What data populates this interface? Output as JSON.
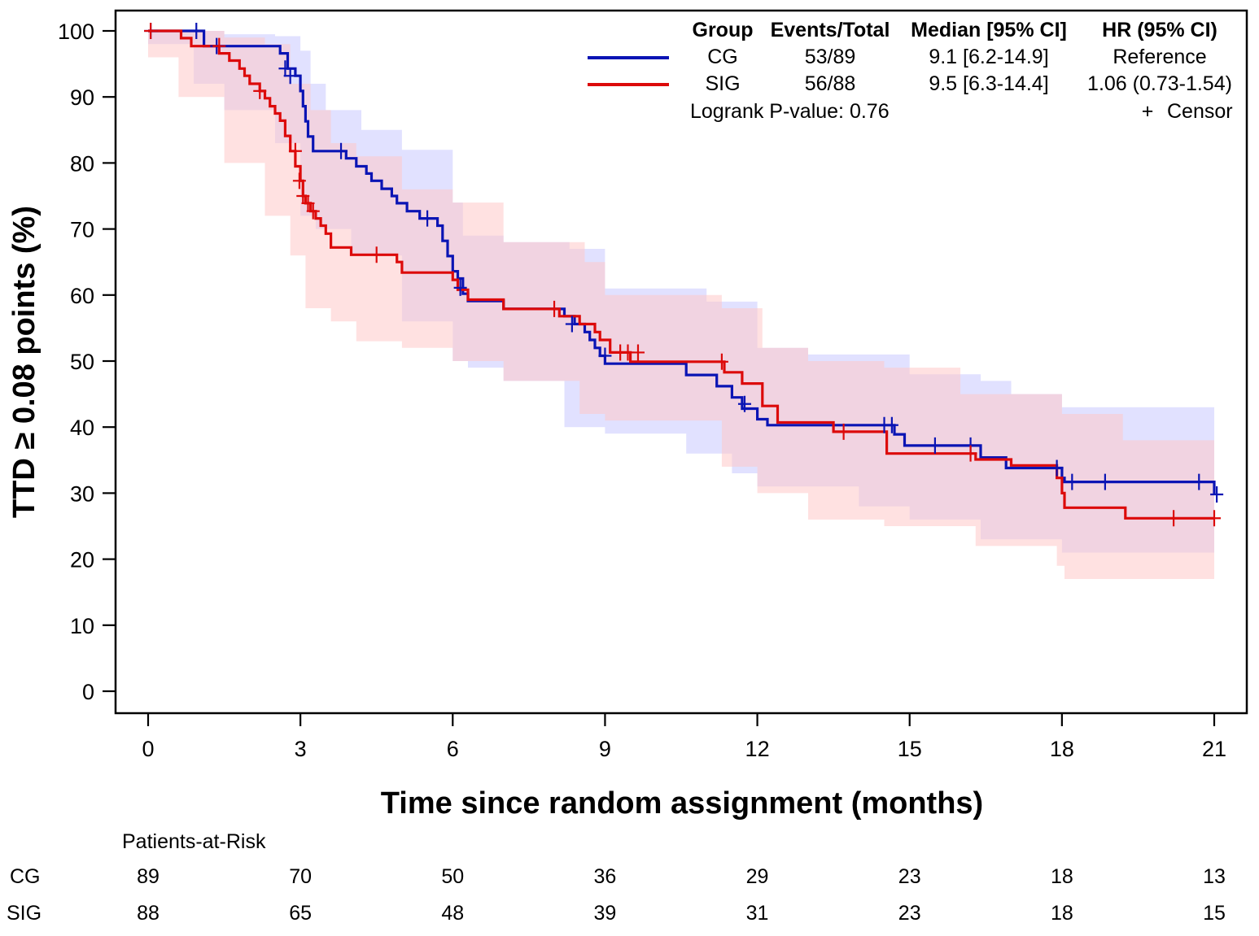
{
  "chart_data": {
    "type": "line",
    "subtype": "kaplan-meier",
    "xlabel": "Time since random assignment (months)",
    "ylabel": "TTD ≥ 0.08 points (%)",
    "xlim": [
      0,
      21
    ],
    "ylim": [
      0,
      100
    ],
    "xticks": [
      "0",
      "3",
      "6",
      "9",
      "12",
      "15",
      "18",
      "21"
    ],
    "yticks": [
      "0",
      "10",
      "20",
      "30",
      "40",
      "50",
      "60",
      "70",
      "80",
      "90",
      "100"
    ],
    "series": [
      {
        "name": "CG",
        "color": "#0a14b4",
        "ci_color": "#c8c8ff",
        "steps": [
          [
            0,
            100
          ],
          [
            0.9,
            100
          ],
          [
            1.1,
            97.7
          ],
          [
            2.5,
            97.7
          ],
          [
            2.6,
            96.6
          ],
          [
            2.75,
            94.3
          ],
          [
            2.9,
            93.2
          ],
          [
            3.0,
            90.9
          ],
          [
            3.05,
            88.6
          ],
          [
            3.1,
            86.3
          ],
          [
            3.15,
            84
          ],
          [
            3.25,
            81.8
          ],
          [
            3.8,
            81.8
          ],
          [
            3.9,
            80.7
          ],
          [
            4.1,
            79.5
          ],
          [
            4.3,
            78.4
          ],
          [
            4.4,
            77.3
          ],
          [
            4.6,
            76.1
          ],
          [
            4.8,
            75
          ],
          [
            4.9,
            73.9
          ],
          [
            5.1,
            72.7
          ],
          [
            5.35,
            71.6
          ],
          [
            5.7,
            70.5
          ],
          [
            5.8,
            68.2
          ],
          [
            5.9,
            65.9
          ],
          [
            6.0,
            63.6
          ],
          [
            6.1,
            62.5
          ],
          [
            6.2,
            60.2
          ],
          [
            6.3,
            59.1
          ],
          [
            7.0,
            57.9
          ],
          [
            8.2,
            56.8
          ],
          [
            8.4,
            55.6
          ],
          [
            8.6,
            54.4
          ],
          [
            8.7,
            53.2
          ],
          [
            8.8,
            52
          ],
          [
            8.9,
            50.8
          ],
          [
            9.0,
            49.6
          ],
          [
            10.6,
            47.9
          ],
          [
            11.2,
            46.2
          ],
          [
            11.5,
            44.5
          ],
          [
            11.7,
            42.8
          ],
          [
            12.0,
            41.2
          ],
          [
            12.2,
            40.3
          ],
          [
            14.7,
            38.9
          ],
          [
            14.9,
            37.2
          ],
          [
            16.4,
            35.4
          ],
          [
            16.9,
            33.8
          ],
          [
            18.0,
            32.3
          ],
          [
            18.05,
            31.7
          ],
          [
            21.0,
            31.7
          ],
          [
            21.0,
            29.8
          ]
        ],
        "censors": [
          [
            0.05,
            100
          ],
          [
            0.95,
            100
          ],
          [
            1.35,
            97.7
          ],
          [
            2.7,
            94.3
          ],
          [
            2.8,
            93.2
          ],
          [
            3.8,
            81.8
          ],
          [
            5.5,
            71.6
          ],
          [
            6.15,
            61.1
          ],
          [
            8.35,
            55.6
          ],
          [
            9.0,
            50.8
          ],
          [
            11.75,
            43.5
          ],
          [
            14.5,
            40.3
          ],
          [
            14.65,
            40.3
          ],
          [
            15.5,
            37.2
          ],
          [
            16.2,
            37.2
          ],
          [
            17.9,
            33.8
          ],
          [
            18.2,
            31.7
          ],
          [
            18.85,
            31.7
          ],
          [
            20.7,
            31.7
          ],
          [
            21.05,
            29.8
          ]
        ],
        "ci_upper": [
          [
            0,
            100
          ],
          [
            1.0,
            100
          ],
          [
            1.5,
            99.5
          ],
          [
            2.5,
            99.2
          ],
          [
            3.0,
            97
          ],
          [
            3.2,
            92
          ],
          [
            3.5,
            88
          ],
          [
            4.2,
            85
          ],
          [
            5.0,
            82
          ],
          [
            6.0,
            74
          ],
          [
            6.2,
            69
          ],
          [
            7.0,
            68
          ],
          [
            8.3,
            67
          ],
          [
            9.0,
            61
          ],
          [
            11.0,
            59
          ],
          [
            12.0,
            52
          ],
          [
            13.0,
            51
          ],
          [
            14.0,
            51
          ],
          [
            15.0,
            48
          ],
          [
            16.4,
            47
          ],
          [
            17.0,
            45
          ],
          [
            18.0,
            43
          ],
          [
            21.0,
            43
          ]
        ],
        "ci_lower": [
          [
            0,
            100
          ],
          [
            0.9,
            98
          ],
          [
            1.5,
            92
          ],
          [
            2.5,
            88
          ],
          [
            3.0,
            83
          ],
          [
            3.3,
            72
          ],
          [
            4.0,
            70
          ],
          [
            5.0,
            66
          ],
          [
            6.0,
            56
          ],
          [
            6.3,
            50
          ],
          [
            7.0,
            49
          ],
          [
            8.2,
            47
          ],
          [
            9.0,
            40
          ],
          [
            10.6,
            39
          ],
          [
            11.5,
            36
          ],
          [
            12.0,
            33
          ],
          [
            14.0,
            31
          ],
          [
            15.0,
            28
          ],
          [
            16.4,
            26
          ],
          [
            18.0,
            23
          ],
          [
            21.0,
            21
          ]
        ]
      },
      {
        "name": "SIG",
        "color": "#dc0a0a",
        "ci_color": "#ffc8c8",
        "steps": [
          [
            0,
            100
          ],
          [
            0.6,
            100
          ],
          [
            0.65,
            98.9
          ],
          [
            0.85,
            97.7
          ],
          [
            1.35,
            97.7
          ],
          [
            1.4,
            96.6
          ],
          [
            1.6,
            95.5
          ],
          [
            1.8,
            94.3
          ],
          [
            1.9,
            93.2
          ],
          [
            2.0,
            92
          ],
          [
            2.2,
            90.9
          ],
          [
            2.3,
            89.8
          ],
          [
            2.4,
            88.6
          ],
          [
            2.5,
            87.5
          ],
          [
            2.6,
            86.4
          ],
          [
            2.7,
            84.1
          ],
          [
            2.8,
            81.8
          ],
          [
            2.9,
            79.5
          ],
          [
            3.0,
            77.3
          ],
          [
            3.05,
            75
          ],
          [
            3.1,
            73.9
          ],
          [
            3.2,
            72.7
          ],
          [
            3.3,
            71.6
          ],
          [
            3.4,
            70.5
          ],
          [
            3.5,
            69.3
          ],
          [
            3.6,
            67.2
          ],
          [
            4.0,
            66.1
          ],
          [
            4.9,
            65
          ],
          [
            5.0,
            63.4
          ],
          [
            6.0,
            62.3
          ],
          [
            6.1,
            60.8
          ],
          [
            6.3,
            59.3
          ],
          [
            7.0,
            57.9
          ],
          [
            8.1,
            56.8
          ],
          [
            8.5,
            55.6
          ],
          [
            8.8,
            54.4
          ],
          [
            8.9,
            53.2
          ],
          [
            9.1,
            51.3
          ],
          [
            9.5,
            49.9
          ],
          [
            11.3,
            49.9
          ],
          [
            11.35,
            48.3
          ],
          [
            11.7,
            46.6
          ],
          [
            12.1,
            43.2
          ],
          [
            12.4,
            40.7
          ],
          [
            13.5,
            39.3
          ],
          [
            14.55,
            36
          ],
          [
            16.3,
            35.1
          ],
          [
            17.0,
            34.2
          ],
          [
            17.9,
            32.3
          ],
          [
            18.0,
            30
          ],
          [
            18.05,
            27.8
          ],
          [
            19.2,
            27.8
          ],
          [
            19.25,
            26.2
          ],
          [
            21.0,
            26.2
          ]
        ],
        "censors": [
          [
            0.05,
            100
          ],
          [
            1.4,
            97.7
          ],
          [
            2.2,
            90.9
          ],
          [
            2.9,
            81.8
          ],
          [
            2.98,
            77.3
          ],
          [
            3.05,
            75
          ],
          [
            3.15,
            73.9
          ],
          [
            3.25,
            72.7
          ],
          [
            4.5,
            66.1
          ],
          [
            8.0,
            57.9
          ],
          [
            9.3,
            51.3
          ],
          [
            9.45,
            51.3
          ],
          [
            9.65,
            51.3
          ],
          [
            11.3,
            49.9
          ],
          [
            13.7,
            39.3
          ],
          [
            16.2,
            36
          ],
          [
            20.2,
            26.2
          ],
          [
            21.0,
            26.2
          ]
        ],
        "ci_upper": [
          [
            0,
            100
          ],
          [
            0.8,
            100
          ],
          [
            1.5,
            99
          ],
          [
            2.3,
            98
          ],
          [
            2.8,
            92
          ],
          [
            3.2,
            88
          ],
          [
            3.6,
            83
          ],
          [
            4.1,
            81
          ],
          [
            5.0,
            76
          ],
          [
            6.0,
            74
          ],
          [
            7.0,
            68
          ],
          [
            8.6,
            65
          ],
          [
            9.0,
            60
          ],
          [
            11.3,
            58
          ],
          [
            12.1,
            52
          ],
          [
            13.0,
            50
          ],
          [
            14.5,
            49
          ],
          [
            16.0,
            45
          ],
          [
            18.0,
            42
          ],
          [
            19.2,
            38
          ],
          [
            21.0,
            37
          ]
        ],
        "ci_lower": [
          [
            0,
            100
          ],
          [
            0.6,
            96
          ],
          [
            1.5,
            90
          ],
          [
            2.3,
            80
          ],
          [
            2.8,
            72
          ],
          [
            3.1,
            66
          ],
          [
            3.6,
            58
          ],
          [
            4.1,
            56
          ],
          [
            5.0,
            53
          ],
          [
            6.0,
            52
          ],
          [
            7.0,
            50
          ],
          [
            8.5,
            47
          ],
          [
            9.0,
            42
          ],
          [
            11.3,
            41
          ],
          [
            12.0,
            34
          ],
          [
            13.0,
            30
          ],
          [
            14.5,
            26
          ],
          [
            16.3,
            25
          ],
          [
            17.9,
            22
          ],
          [
            18.05,
            19
          ],
          [
            19.2,
            17
          ],
          [
            21.0,
            17
          ]
        ]
      }
    ],
    "legend": {
      "headers": [
        "Group",
        "Events/Total",
        "Median [95% CI]",
        "HR (95% CI)"
      ],
      "rows": [
        {
          "group": "CG",
          "events": "53/89",
          "median": "9.1 [6.2-14.9]",
          "hr": "Reference",
          "color": "#0a14b4"
        },
        {
          "group": "SIG",
          "events": "56/88",
          "median": "9.5 [6.3-14.4]",
          "hr": "1.06 (0.73-1.54)",
          "color": "#dc0a0a"
        }
      ],
      "logrank": "Logrank P-value: 0.76",
      "censor_label": "Censor",
      "censor_symbol": "+"
    },
    "risk_table": {
      "title": "Patients-at-Risk",
      "times": [
        0,
        3,
        6,
        9,
        12,
        15,
        18,
        21
      ],
      "rows": [
        {
          "group": "CG",
          "counts": [
            "89",
            "70",
            "50",
            "36",
            "29",
            "23",
            "18",
            "13"
          ]
        },
        {
          "group": "SIG",
          "counts": [
            "88",
            "65",
            "48",
            "39",
            "31",
            "23",
            "18",
            "15"
          ]
        }
      ]
    }
  }
}
